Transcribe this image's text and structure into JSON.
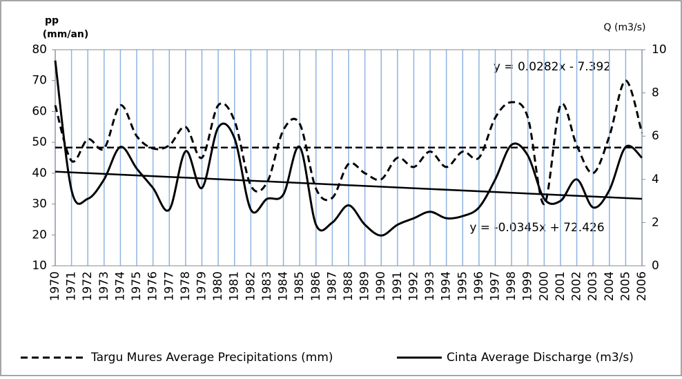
{
  "chart_data": {
    "type": "line",
    "y_label_lines": [
      "pp",
      "(mm/an)"
    ],
    "y2_label": "Q (m3/s)",
    "categories": [
      "1970",
      "1971",
      "1972",
      "1973",
      "1974",
      "1975",
      "1976",
      "1977",
      "1978",
      "1979",
      "1980",
      "1981",
      "1982",
      "1983",
      "1984",
      "1985",
      "1986",
      "1987",
      "1988",
      "1989",
      "1990",
      "1991",
      "1992",
      "1993",
      "1994",
      "1995",
      "1996",
      "1997",
      "1998",
      "1999",
      "2000",
      "2001",
      "2002",
      "2003",
      "2004",
      "2005",
      "2006"
    ],
    "series": [
      {
        "name": "Targu Mures Average Precipitations (mm)",
        "color": "#000000",
        "style": "dashed",
        "values": [
          62,
          44,
          51,
          48,
          62,
          52,
          48,
          49,
          55,
          45,
          62,
          57,
          36,
          37,
          54,
          56,
          35,
          32,
          43,
          40,
          38,
          45,
          42,
          47,
          42,
          47,
          45,
          58,
          63,
          58,
          30,
          62,
          49,
          40,
          52,
          70,
          53
        ]
      },
      {
        "name": "Cinta Average Discharge (m3/s)",
        "color": "#000000",
        "style": "solid",
        "axis": "y2",
        "values": [
          9.5,
          3.5,
          3.1,
          4.0,
          5.5,
          4.5,
          3.6,
          2.6,
          5.3,
          3.6,
          6.4,
          5.9,
          2.6,
          3.1,
          3.3,
          5.5,
          1.9,
          2.0,
          2.8,
          1.9,
          1.4,
          1.9,
          2.2,
          2.5,
          2.2,
          2.3,
          2.7,
          4.0,
          5.6,
          5.1,
          3.1,
          3.0,
          4.0,
          2.7,
          3.5,
          5.5,
          5.0
        ]
      }
    ],
    "trend_lines": [
      {
        "style": "dashed",
        "values": [
          48.3,
          48.3
        ]
      },
      {
        "style": "solid",
        "values": [
          40.5,
          31.7
        ]
      }
    ],
    "annotations": [
      "y = 0.0282x - 7.392",
      "y = -0.0345x + 72.426"
    ],
    "ylim": [
      10,
      80
    ],
    "yticks": [
      10,
      20,
      30,
      40,
      50,
      60,
      70,
      80
    ],
    "y2lim": [
      0,
      10
    ],
    "y2ticks": [
      0,
      2,
      4,
      6,
      8,
      10
    ],
    "grid_color": "#8db3e2"
  }
}
